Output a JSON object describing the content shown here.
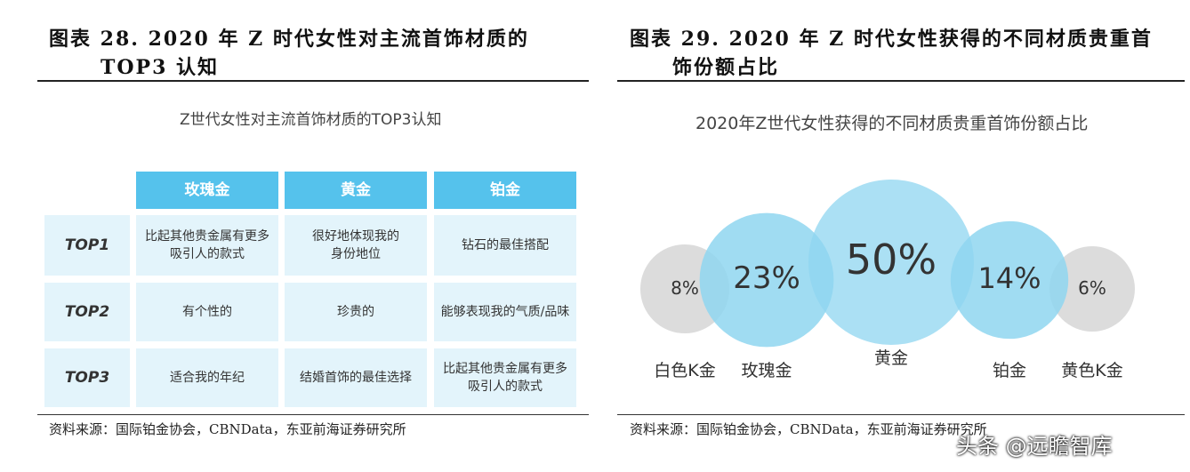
{
  "left": {
    "fig_title_line1": "图表 28. 2020 年 Z 时代女性对主流首饰材质的",
    "fig_title_line2": "TOP3 认知",
    "chart_title": "Z世代女性对主流首饰材质的TOP3认知",
    "columns": [
      "玫瑰金",
      "黄金",
      "铂金"
    ],
    "rows": [
      {
        "label": "TOP1",
        "cells": [
          "比起其他贵金属有更多\n吸引人的款式",
          "很好地体现我的\n身份地位",
          "钻石的最佳搭配"
        ]
      },
      {
        "label": "TOP2",
        "cells": [
          "有个性的",
          "珍贵的",
          "能够表现我的气质/品味"
        ]
      },
      {
        "label": "TOP3",
        "cells": [
          "适合我的年纪",
          "结婚首饰的最佳选择",
          "比起其他贵金属有更多\n吸引人的款式"
        ]
      }
    ],
    "source": "资料来源：国际铂金协会，CBNData，东亚前海证券研究所"
  },
  "right": {
    "fig_title_line1": "图表 29. 2020 年 Z 时代女性获得的不同材质贵重首",
    "fig_title_line2": "饰份额占比",
    "chart_title": "2020年Z世代女性获得的不同材质贵重首饰份额占比",
    "source": "资料来源：国际铂金协会，CBNData，东亚前海证券研究所"
  },
  "chart_data": {
    "type": "bubble",
    "title": "2020年Z世代女性获得的不同材质贵重首饰份额占比",
    "categories": [
      "白色K金",
      "玫瑰金",
      "黄金",
      "铂金",
      "黄色K金"
    ],
    "values": [
      8,
      23,
      50,
      14,
      6
    ],
    "value_labels": [
      "8%",
      "23%",
      "50%",
      "14%",
      "6%"
    ],
    "colors": {
      "grey": "#d6d6d6",
      "light_blue": "#8fd6f0",
      "mid_blue": "#5cc4ea"
    }
  },
  "watermark": "头条 @远瞻智库"
}
